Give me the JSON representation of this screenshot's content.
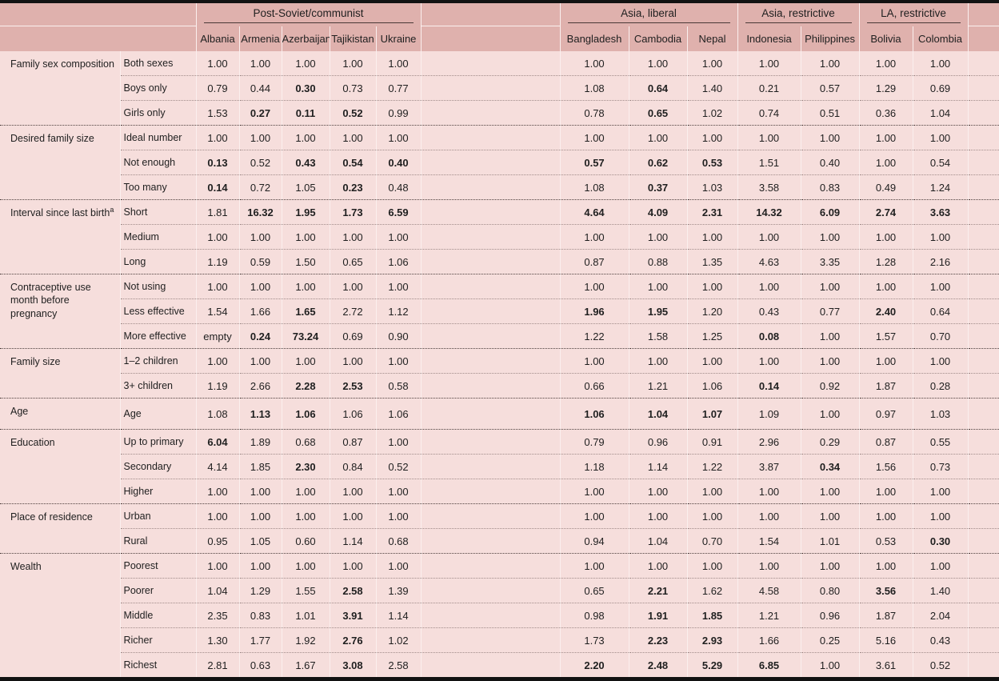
{
  "colors": {
    "header_band": "#dfb1ad",
    "row_band": "#f6dedc",
    "frame_bar": "#121212",
    "text": "#1f1f1f",
    "group_underline": "#4a3937",
    "row_divider": "#a18c8a",
    "section_divider": "#4e403e"
  },
  "table": {
    "groups": [
      {
        "label": "Post-Soviet/communist",
        "countries": [
          "Albania",
          "Armenia",
          "Azerbaijan",
          "Tajikistan",
          "Ukraine"
        ]
      },
      {
        "label": "Asia, liberal",
        "countries": [
          "Bangladesh",
          "Cambodia",
          "Nepal"
        ]
      },
      {
        "label": "Asia, restrictive",
        "countries": [
          "Indonesia",
          "Philippines"
        ]
      },
      {
        "label": "LA, restrictive",
        "countries": [
          "Bolivia",
          "Colombia"
        ]
      }
    ],
    "sections": [
      {
        "label": "Family sex composition",
        "rows": [
          {
            "label": "Both sexes",
            "values": [
              "1.00",
              "1.00",
              "1.00",
              "1.00",
              "1.00",
              "1.00",
              "1.00",
              "1.00",
              "1.00",
              "1.00",
              "1.00",
              "1.00"
            ],
            "bold": [
              0,
              0,
              0,
              0,
              0,
              0,
              0,
              0,
              0,
              0,
              0,
              0
            ]
          },
          {
            "label": "Boys only",
            "values": [
              "0.79",
              "0.44",
              "0.30",
              "0.73",
              "0.77",
              "1.08",
              "0.64",
              "1.40",
              "0.21",
              "0.57",
              "1.29",
              "0.69"
            ],
            "bold": [
              0,
              0,
              1,
              0,
              0,
              0,
              1,
              0,
              0,
              0,
              0,
              0
            ]
          },
          {
            "label": "Girls only",
            "values": [
              "1.53",
              "0.27",
              "0.11",
              "0.52",
              "0.99",
              "0.78",
              "0.65",
              "1.02",
              "0.74",
              "0.51",
              "0.36",
              "1.04"
            ],
            "bold": [
              0,
              1,
              1,
              1,
              0,
              0,
              1,
              0,
              0,
              0,
              0,
              0
            ]
          }
        ]
      },
      {
        "label": "Desired family size",
        "rows": [
          {
            "label": "Ideal number",
            "values": [
              "1.00",
              "1.00",
              "1.00",
              "1.00",
              "1.00",
              "1.00",
              "1.00",
              "1.00",
              "1.00",
              "1.00",
              "1.00",
              "1.00"
            ],
            "bold": [
              0,
              0,
              0,
              0,
              0,
              0,
              0,
              0,
              0,
              0,
              0,
              0
            ]
          },
          {
            "label": "Not enough",
            "values": [
              "0.13",
              "0.52",
              "0.43",
              "0.54",
              "0.40",
              "0.57",
              "0.62",
              "0.53",
              "1.51",
              "0.40",
              "1.00",
              "0.54"
            ],
            "bold": [
              1,
              0,
              1,
              1,
              1,
              1,
              1,
              1,
              0,
              0,
              0,
              0
            ]
          },
          {
            "label": "Too many",
            "values": [
              "0.14",
              "0.72",
              "1.05",
              "0.23",
              "0.48",
              "1.08",
              "0.37",
              "1.03",
              "3.58",
              "0.83",
              "0.49",
              "1.24"
            ],
            "bold": [
              1,
              0,
              0,
              1,
              0,
              0,
              1,
              0,
              0,
              0,
              0,
              0
            ]
          }
        ]
      },
      {
        "label": "Interval since last birth",
        "sup": "a",
        "rows": [
          {
            "label": "Short",
            "values": [
              "1.81",
              "16.32",
              "1.95",
              "1.73",
              "6.59",
              "4.64",
              "4.09",
              "2.31",
              "14.32",
              "6.09",
              "2.74",
              "3.63"
            ],
            "bold": [
              0,
              1,
              1,
              1,
              1,
              1,
              1,
              1,
              1,
              1,
              1,
              1
            ]
          },
          {
            "label": "Medium",
            "values": [
              "1.00",
              "1.00",
              "1.00",
              "1.00",
              "1.00",
              "1.00",
              "1.00",
              "1.00",
              "1.00",
              "1.00",
              "1.00",
              "1.00"
            ],
            "bold": [
              0,
              0,
              0,
              0,
              0,
              0,
              0,
              0,
              0,
              0,
              0,
              0
            ]
          },
          {
            "label": "Long",
            "values": [
              "1.19",
              "0.59",
              "1.50",
              "0.65",
              "1.06",
              "0.87",
              "0.88",
              "1.35",
              "4.63",
              "3.35",
              "1.28",
              "2.16"
            ],
            "bold": [
              0,
              0,
              0,
              0,
              0,
              0,
              0,
              0,
              0,
              0,
              0,
              0
            ]
          }
        ]
      },
      {
        "label": "Contraceptive use month before pregnancy",
        "rows": [
          {
            "label": "Not using",
            "values": [
              "1.00",
              "1.00",
              "1.00",
              "1.00",
              "1.00",
              "1.00",
              "1.00",
              "1.00",
              "1.00",
              "1.00",
              "1.00",
              "1.00"
            ],
            "bold": [
              0,
              0,
              0,
              0,
              0,
              0,
              0,
              0,
              0,
              0,
              0,
              0
            ]
          },
          {
            "label": "Less effective",
            "values": [
              "1.54",
              "1.66",
              "1.65",
              "2.72",
              "1.12",
              "1.96",
              "1.95",
              "1.20",
              "0.43",
              "0.77",
              "2.40",
              "0.64"
            ],
            "bold": [
              0,
              0,
              1,
              0,
              0,
              1,
              1,
              0,
              0,
              0,
              1,
              0
            ]
          },
          {
            "label": "More effective",
            "values": [
              "empty",
              "0.24",
              "73.24",
              "0.69",
              "0.90",
              "1.22",
              "1.58",
              "1.25",
              "0.08",
              "1.00",
              "1.57",
              "0.70"
            ],
            "bold": [
              0,
              1,
              1,
              0,
              0,
              0,
              0,
              0,
              1,
              0,
              0,
              0
            ]
          }
        ]
      },
      {
        "label": "Family size",
        "rows": [
          {
            "label": "1–2 children",
            "values": [
              "1.00",
              "1.00",
              "1.00",
              "1.00",
              "1.00",
              "1.00",
              "1.00",
              "1.00",
              "1.00",
              "1.00",
              "1.00",
              "1.00"
            ],
            "bold": [
              0,
              0,
              0,
              0,
              0,
              0,
              0,
              0,
              0,
              0,
              0,
              0
            ]
          },
          {
            "label": "3+ children",
            "values": [
              "1.19",
              "2.66",
              "2.28",
              "2.53",
              "0.58",
              "0.66",
              "1.21",
              "1.06",
              "0.14",
              "0.92",
              "1.87",
              "0.28"
            ],
            "bold": [
              0,
              0,
              1,
              1,
              0,
              0,
              0,
              0,
              1,
              0,
              0,
              0
            ]
          }
        ]
      },
      {
        "label": "Age",
        "rows": [
          {
            "label": "Age",
            "values": [
              "1.08",
              "1.13",
              "1.06",
              "1.06",
              "1.06",
              "1.06",
              "1.04",
              "1.07",
              "1.09",
              "1.00",
              "0.97",
              "1.03"
            ],
            "bold": [
              0,
              1,
              1,
              0,
              0,
              1,
              1,
              1,
              0,
              0,
              0,
              0
            ]
          }
        ]
      },
      {
        "label": "Education",
        "rows": [
          {
            "label": "Up to primary",
            "values": [
              "6.04",
              "1.89",
              "0.68",
              "0.87",
              "1.00",
              "0.79",
              "0.96",
              "0.91",
              "2.96",
              "0.29",
              "0.87",
              "0.55"
            ],
            "bold": [
              1,
              0,
              0,
              0,
              0,
              0,
              0,
              0,
              0,
              0,
              0,
              0
            ]
          },
          {
            "label": "Secondary",
            "values": [
              "4.14",
              "1.85",
              "2.30",
              "0.84",
              "0.52",
              "1.18",
              "1.14",
              "1.22",
              "3.87",
              "0.34",
              "1.56",
              "0.73"
            ],
            "bold": [
              0,
              0,
              1,
              0,
              0,
              0,
              0,
              0,
              0,
              1,
              0,
              0
            ]
          },
          {
            "label": "Higher",
            "values": [
              "1.00",
              "1.00",
              "1.00",
              "1.00",
              "1.00",
              "1.00",
              "1.00",
              "1.00",
              "1.00",
              "1.00",
              "1.00",
              "1.00"
            ],
            "bold": [
              0,
              0,
              0,
              0,
              0,
              0,
              0,
              0,
              0,
              0,
              0,
              0
            ]
          }
        ]
      },
      {
        "label": "Place of residence",
        "rows": [
          {
            "label": "Urban",
            "values": [
              "1.00",
              "1.00",
              "1.00",
              "1.00",
              "1.00",
              "1.00",
              "1.00",
              "1.00",
              "1.00",
              "1.00",
              "1.00",
              "1.00"
            ],
            "bold": [
              0,
              0,
              0,
              0,
              0,
              0,
              0,
              0,
              0,
              0,
              0,
              0
            ]
          },
          {
            "label": "Rural",
            "values": [
              "0.95",
              "1.05",
              "0.60",
              "1.14",
              "0.68",
              "0.94",
              "1.04",
              "0.70",
              "1.54",
              "1.01",
              "0.53",
              "0.30"
            ],
            "bold": [
              0,
              0,
              0,
              0,
              0,
              0,
              0,
              0,
              0,
              0,
              0,
              1
            ]
          }
        ]
      },
      {
        "label": "Wealth",
        "rows": [
          {
            "label": "Poorest",
            "values": [
              "1.00",
              "1.00",
              "1.00",
              "1.00",
              "1.00",
              "1.00",
              "1.00",
              "1.00",
              "1.00",
              "1.00",
              "1.00",
              "1.00"
            ],
            "bold": [
              0,
              0,
              0,
              0,
              0,
              0,
              0,
              0,
              0,
              0,
              0,
              0
            ]
          },
          {
            "label": "Poorer",
            "values": [
              "1.04",
              "1.29",
              "1.55",
              "2.58",
              "1.39",
              "0.65",
              "2.21",
              "1.62",
              "4.58",
              "0.80",
              "3.56",
              "1.40"
            ],
            "bold": [
              0,
              0,
              0,
              1,
              0,
              0,
              1,
              0,
              0,
              0,
              1,
              0
            ]
          },
          {
            "label": "Middle",
            "values": [
              "2.35",
              "0.83",
              "1.01",
              "3.91",
              "1.14",
              "0.98",
              "1.91",
              "1.85",
              "1.21",
              "0.96",
              "1.87",
              "2.04"
            ],
            "bold": [
              0,
              0,
              0,
              1,
              0,
              0,
              1,
              1,
              0,
              0,
              0,
              0
            ]
          },
          {
            "label": "Richer",
            "values": [
              "1.30",
              "1.77",
              "1.92",
              "2.76",
              "1.02",
              "1.73",
              "2.23",
              "2.93",
              "1.66",
              "0.25",
              "5.16",
              "0.43"
            ],
            "bold": [
              0,
              0,
              0,
              1,
              0,
              0,
              1,
              1,
              0,
              0,
              0,
              0
            ]
          },
          {
            "label": "Richest",
            "values": [
              "2.81",
              "0.63",
              "1.67",
              "3.08",
              "2.58",
              "2.20",
              "2.48",
              "5.29",
              "6.85",
              "1.00",
              "3.61",
              "0.52"
            ],
            "bold": [
              0,
              0,
              0,
              1,
              0,
              1,
              1,
              1,
              1,
              0,
              0,
              0
            ]
          }
        ]
      }
    ]
  }
}
